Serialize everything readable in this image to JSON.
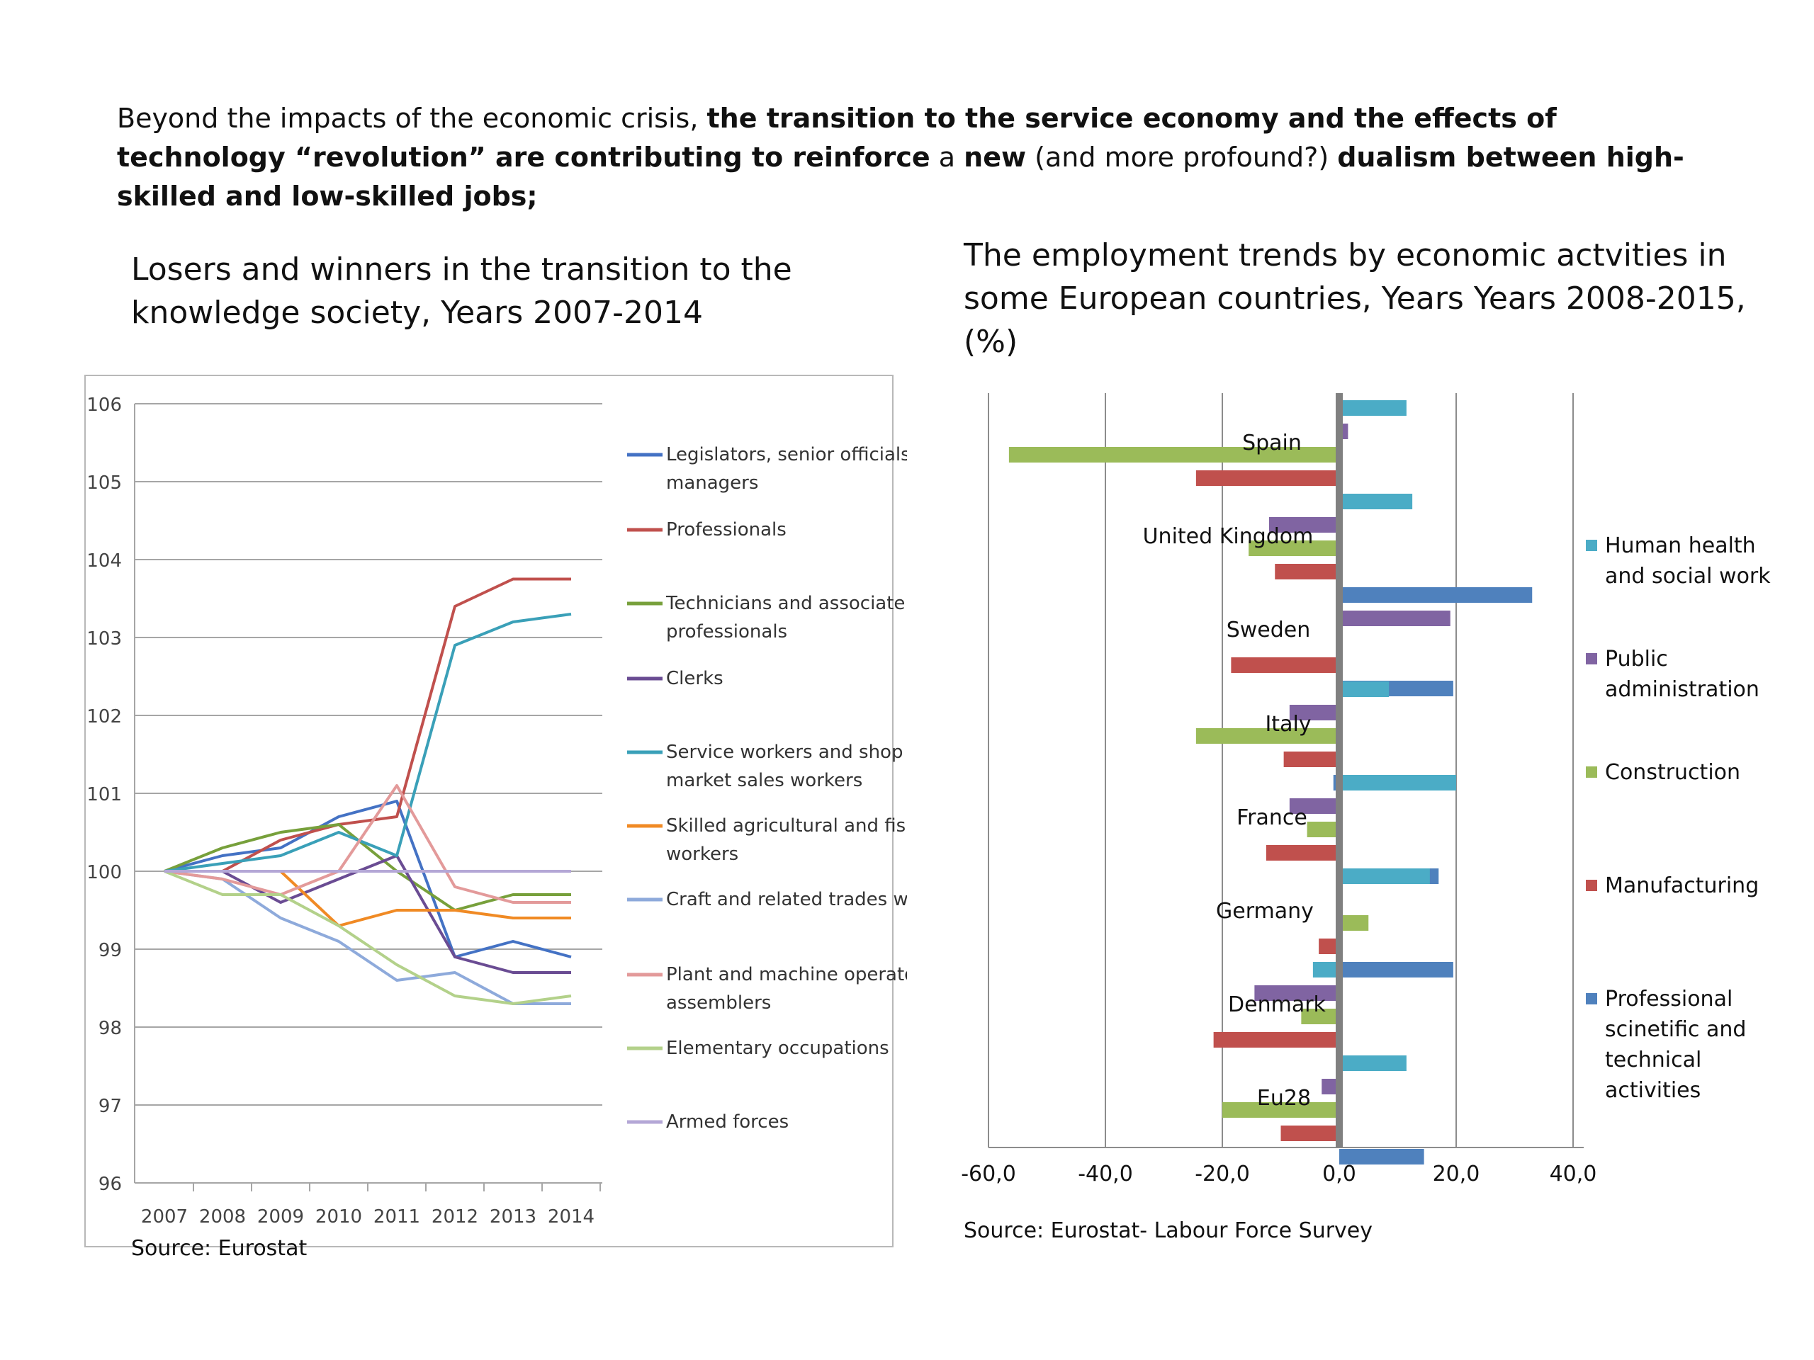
{
  "intro": {
    "p1": "Beyond the impacts of the economic crisis, ",
    "b1": "the transition to the service economy and the effects of technology “revolution” are contributing to reinforce",
    "p2": " a ",
    "b2": "new",
    "p3": " (and more profound?) ",
    "b3": "dualism between high-skilled and low-skilled jobs;"
  },
  "left_title": "Losers and winners in the transition to the knowledge society, Years 2007-2014",
  "right_title": "The employment trends by economic actvities in some European countries, Years Years 2008-2015, (%)",
  "left_source": "Source: Eurostat",
  "right_source": "Source: Eurostat- Labour Force Survey",
  "chart_data": [
    {
      "type": "line",
      "x": [
        "2007",
        "2008",
        "2009",
        "2010",
        "2011",
        "2012",
        "2013",
        "2014"
      ],
      "ylim": [
        96,
        106
      ],
      "yticks": [
        96,
        97,
        98,
        99,
        100,
        101,
        102,
        103,
        104,
        105,
        106
      ],
      "grid": true,
      "legend": "right",
      "series": [
        {
          "name": "Legislators, senior officials and managers",
          "color": "#4472c4",
          "values": [
            100,
            100.2,
            100.3,
            100.7,
            100.9,
            98.9,
            99.1,
            98.9
          ]
        },
        {
          "name": "Professionals",
          "color": "#c0504d",
          "values": [
            100,
            100,
            100.4,
            100.6,
            100.7,
            103.4,
            103.75,
            103.75
          ]
        },
        {
          "name": "Technicians and associate professionals",
          "color": "#77a03b",
          "values": [
            100,
            100.3,
            100.5,
            100.6,
            100,
            99.5,
            99.7,
            99.7
          ]
        },
        {
          "name": "Clerks",
          "color": "#6a4c93",
          "values": [
            100,
            100,
            99.6,
            99.9,
            100.2,
            98.9,
            98.7,
            98.7
          ]
        },
        {
          "name": "Service workers and shop and market sales workers",
          "color": "#3aa0b8",
          "values": [
            100,
            100.1,
            100.2,
            100.5,
            100.2,
            102.9,
            103.2,
            103.3
          ]
        },
        {
          "name": "Skilled agricultural and fishery workers",
          "color": "#f08a24",
          "values": [
            100,
            100,
            100,
            99.3,
            99.5,
            99.5,
            99.4,
            99.4
          ]
        },
        {
          "name": "Craft and related trades workers",
          "color": "#8eaadb",
          "values": [
            100,
            99.9,
            99.4,
            99.1,
            98.6,
            98.7,
            98.3,
            98.3
          ]
        },
        {
          "name": "Plant and machine operators and assemblers",
          "color": "#e39a9a",
          "values": [
            100,
            99.9,
            99.7,
            100,
            101.1,
            99.8,
            99.6,
            99.6
          ]
        },
        {
          "name": "Elementary occupations",
          "color": "#b3d18a",
          "values": [
            100,
            99.7,
            99.7,
            99.3,
            98.8,
            98.4,
            98.3,
            98.4
          ]
        },
        {
          "name": "Armed forces",
          "color": "#b4a7d6",
          "values": [
            100,
            100,
            100,
            100,
            100,
            100,
            100,
            100
          ]
        }
      ]
    },
    {
      "type": "bar",
      "orientation": "horizontal",
      "categories": [
        "Spain",
        "United Kingdom",
        "Sweden",
        "Italy",
        "France",
        "Germany",
        "Denmark",
        "Eu28"
      ],
      "xlim": [
        -60,
        40
      ],
      "xticks": [
        "-60,0",
        "-40,0",
        "-20,0",
        "0,0",
        "20,0",
        "40,0"
      ],
      "grid": true,
      "legend": "right",
      "series": [
        {
          "name": "Human health and social work",
          "color": "#4bacc6",
          "values": [
            11.5,
            12.5,
            0.5,
            8.5,
            20,
            15.5,
            -4.5,
            11.5
          ]
        },
        {
          "name": "Public administration",
          "color": "#8064a2",
          "values": [
            1.5,
            -12,
            19,
            -8.5,
            -8.5,
            0,
            -14.5,
            -3
          ]
        },
        {
          "name": "Construction",
          "color": "#9bbb59",
          "values": [
            -56.5,
            -15.5,
            0,
            -24.5,
            -5.5,
            5,
            -6.5,
            -20
          ]
        },
        {
          "name": "Manufacturing",
          "color": "#c0504d",
          "values": [
            -24.5,
            -11,
            -18.5,
            -9.5,
            -12.5,
            -3.5,
            -21.5,
            -10
          ]
        },
        {
          "name": "Professional scinetific and technical activities",
          "color": "#4f81bd",
          "values": [
            -0.5,
            33,
            19.5,
            -1,
            17,
            19.5,
            3.5,
            14.5
          ]
        }
      ]
    }
  ]
}
